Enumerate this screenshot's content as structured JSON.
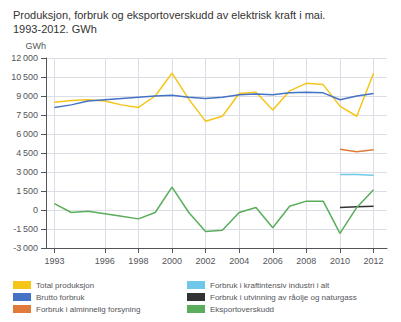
{
  "chart_data": {
    "type": "line",
    "title": "Produksjon, forbruk og eksportoverskudd av elektrisk kraft i mai.",
    "subtitle": "1993-2012. GWh",
    "ylabel": "GWh",
    "x": [
      1993,
      1994,
      1995,
      1996,
      1997,
      1998,
      1999,
      2000,
      2001,
      2002,
      2003,
      2004,
      2005,
      2006,
      2007,
      2008,
      2009,
      2010,
      2011,
      2012
    ],
    "series": [
      {
        "name": "Total produksjon",
        "color": "#f5c518",
        "values": [
          8500,
          8650,
          8700,
          8600,
          8300,
          8100,
          9000,
          10800,
          8750,
          7000,
          7400,
          9200,
          9300,
          7900,
          9400,
          10000,
          9900,
          8200,
          7400,
          10800
        ]
      },
      {
        "name": "Brutto forbruk",
        "color": "#4472c4",
        "values": [
          8100,
          8300,
          8600,
          8700,
          8800,
          8900,
          9000,
          9050,
          8900,
          8800,
          8900,
          9100,
          9150,
          9100,
          9250,
          9300,
          9250,
          8700,
          9000,
          9200
        ]
      },
      {
        "name": "Forbruk i alminnelig forsyning",
        "color": "#e07b39",
        "values": [
          null,
          null,
          null,
          null,
          null,
          null,
          null,
          null,
          null,
          null,
          null,
          null,
          null,
          null,
          null,
          null,
          null,
          4800,
          4600,
          4750
        ]
      },
      {
        "name": "Forbruk i kraftintensiv industri i alt",
        "color": "#70c8e8",
        "values": [
          null,
          null,
          null,
          null,
          null,
          null,
          null,
          null,
          null,
          null,
          null,
          null,
          null,
          null,
          null,
          null,
          null,
          2800,
          2800,
          2750
        ]
      },
      {
        "name": "Forbruk i utvinning av råolje og naturgass",
        "color": "#333333",
        "values": [
          null,
          null,
          null,
          null,
          null,
          null,
          null,
          null,
          null,
          null,
          null,
          null,
          null,
          null,
          null,
          null,
          null,
          200,
          250,
          300
        ]
      },
      {
        "name": "Eksportoverskudd",
        "color": "#5aad5a",
        "values": [
          500,
          -200,
          -100,
          -300,
          -500,
          -700,
          -200,
          1800,
          -200,
          -1700,
          -1600,
          -200,
          200,
          -1400,
          300,
          700,
          700,
          -1850,
          200,
          1600
        ]
      }
    ],
    "xlim": [
      1992.5,
      2012.8
    ],
    "xticks": [
      1993,
      1996,
      1998,
      2000,
      2002,
      2004,
      2006,
      2008,
      2010,
      2012
    ],
    "ylim": [
      -3000,
      12000
    ],
    "yticks": [
      {
        "value": -3000,
        "label": "-3 000"
      },
      {
        "value": -1500,
        "label": "-1 500"
      },
      0,
      {
        "value": 1500,
        "label": "1 500"
      },
      {
        "value": 3000,
        "label": "3 000"
      },
      {
        "value": 4500,
        "label": "4 500"
      },
      {
        "value": 6000,
        "label": "6 000"
      },
      {
        "value": 7500,
        "label": "7 500"
      },
      {
        "value": 9000,
        "label": "9 000"
      },
      {
        "value": 10500,
        "label": "10 500"
      },
      {
        "value": 12000,
        "label": "12 000"
      }
    ],
    "grid": true,
    "legend": "bottom"
  }
}
